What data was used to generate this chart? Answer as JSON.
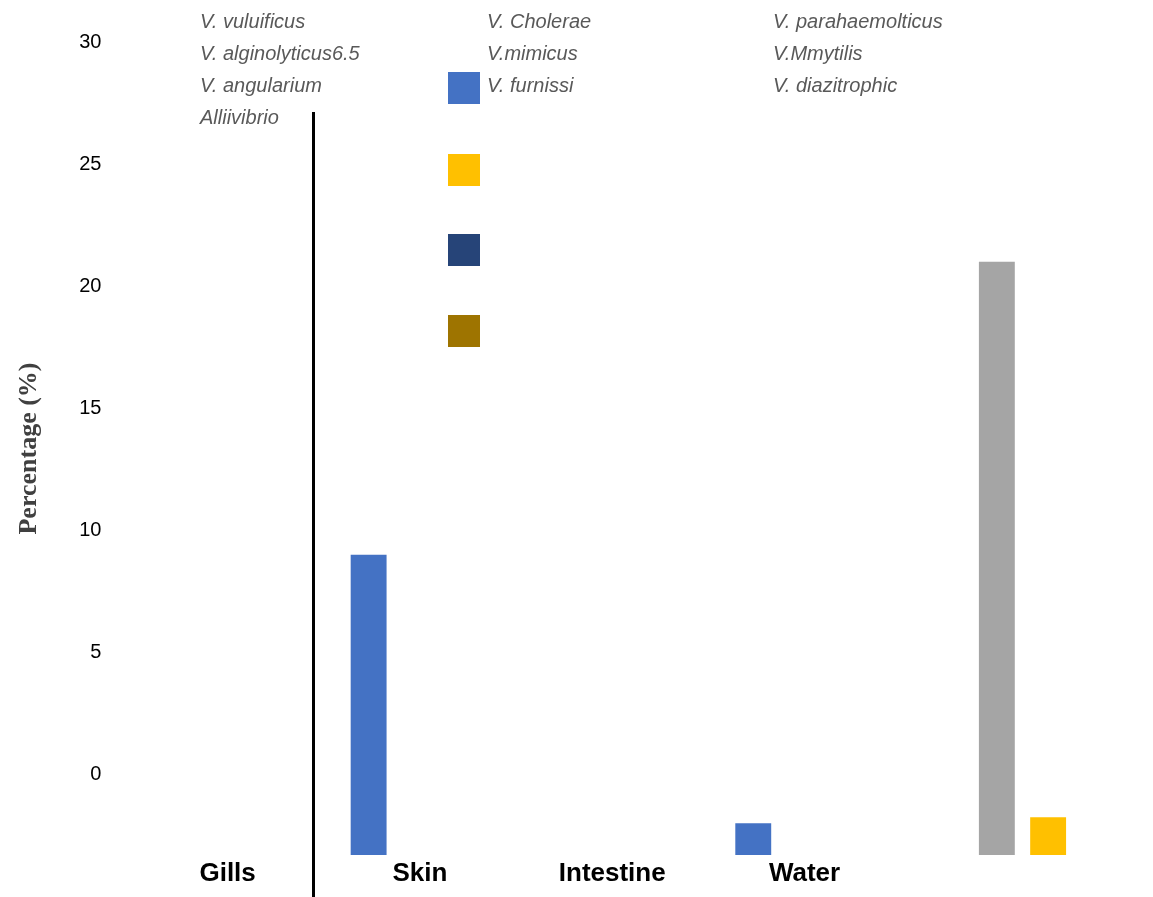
{
  "chart_data": {
    "type": "bar",
    "ylabel": "Percentage (%)",
    "categories": [
      "Gills",
      "Skin",
      "Intestine",
      "Water",
      null
    ],
    "series": [
      {
        "color": "#4472c4",
        "values": [
          null,
          12.3,
          null,
          1.3,
          null
        ],
        "base": [
          null,
          -3.3,
          null,
          -3.3,
          null
        ]
      },
      {
        "color": "#a5a5a5",
        "values": [
          null,
          null,
          null,
          null,
          24.3
        ],
        "base": [
          null,
          null,
          null,
          null,
          -3.3
        ]
      },
      {
        "color": "#ffc000",
        "values": [
          null,
          null,
          null,
          null,
          1.55
        ],
        "base": [
          null,
          null,
          null,
          null,
          -3.3
        ]
      }
    ],
    "ylim": [
      -3.3,
      30
    ],
    "yticks": [
      0,
      5,
      10,
      15,
      20,
      25,
      30
    ],
    "grid": false,
    "legend": false,
    "annotations": [
      "V. vuluificus",
      "V. alginolyticus6.5",
      "V. angularium",
      "Alliivibrio",
      "V. Cholerae",
      "V.mimicus",
      "V. furnissi",
      "V. parahaemolticus",
      "V.Mmytilis",
      "V. diazitrophic"
    ]
  }
}
